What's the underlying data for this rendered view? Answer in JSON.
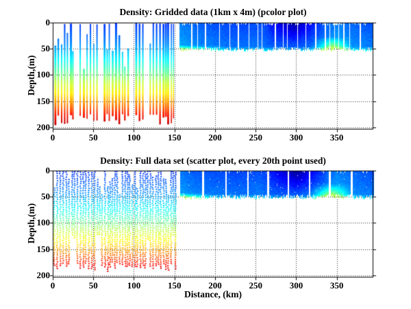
{
  "figure": {
    "background": "#ffffff",
    "axis_color": "#000000",
    "grid_style": "dotted"
  },
  "chart_data": [
    {
      "type": "heatmap",
      "render": "pcolor",
      "title": "Density: Gridded data (1km x 4m) (pcolor plot)",
      "xlabel": "",
      "ylabel": "Depth,(m)",
      "xlim": [
        0,
        395
      ],
      "ylim": [
        0,
        204
      ],
      "y_axis_reversed": true,
      "xticks": [
        0,
        50,
        100,
        150,
        200,
        250,
        300,
        350
      ],
      "yticks": [
        0,
        50,
        100,
        150,
        200
      ],
      "grid": "on",
      "colormap": "jet",
      "depth_value_stops": [
        [
          0,
          0.17
        ],
        [
          40,
          0.26
        ],
        [
          70,
          0.37
        ],
        [
          95,
          0.47
        ],
        [
          115,
          0.57
        ],
        [
          135,
          0.64
        ],
        [
          155,
          0.74
        ],
        [
          175,
          0.85
        ],
        [
          192,
          0.93
        ]
      ],
      "sections": [
        {
          "name": "survey-profiles",
          "style": "stripes",
          "x_range": [
            2,
            150
          ],
          "depth_range": [
            0,
            196
          ]
        },
        {
          "name": "shallow-transect",
          "style": "block",
          "x_range": [
            156,
            395
          ],
          "depth_range": [
            0,
            52
          ],
          "base_values": [
            [
              156,
              0.25
            ],
            [
              175,
              0.22
            ],
            [
              200,
              0.2
            ],
            [
              230,
              0.19
            ],
            [
              255,
              0.2
            ],
            [
              270,
              0.17
            ],
            [
              300,
              0.16
            ],
            [
              330,
              0.2
            ],
            [
              350,
              0.25
            ],
            [
              370,
              0.22
            ],
            [
              395,
              0.2
            ]
          ],
          "dark_patch": {
            "x_range": [
              262,
              335
            ],
            "peak_x": 297,
            "max_drop": 0.13
          },
          "cyan_wedge": {
            "x_range": [
              316,
              366
            ],
            "peak_x": 344,
            "depth_from": 26,
            "max_rise": 0.32
          },
          "bottom_fringe": {
            "x_max": 215,
            "depth_from": 42,
            "rise": 0.18
          },
          "gap_style": "random"
        }
      ]
    },
    {
      "type": "scatter",
      "render": "scatter",
      "title": "Density: Full data set (scatter plot, every 20th point used)",
      "xlabel": "Distance, (km)",
      "ylabel": "Depth,(m)",
      "xlim": [
        0,
        395
      ],
      "ylim": [
        0,
        204
      ],
      "y_axis_reversed": true,
      "xticks": [
        0,
        50,
        100,
        150,
        200,
        250,
        300,
        350
      ],
      "yticks": [
        0,
        50,
        100,
        150,
        200
      ],
      "grid": "on",
      "colormap": "jet",
      "depth_value_stops": [
        [
          0,
          0.17
        ],
        [
          40,
          0.26
        ],
        [
          70,
          0.37
        ],
        [
          95,
          0.47
        ],
        [
          115,
          0.57
        ],
        [
          135,
          0.64
        ],
        [
          155,
          0.74
        ],
        [
          175,
          0.85
        ],
        [
          192,
          0.93
        ]
      ],
      "sections": [
        {
          "name": "survey-profiles",
          "style": "dots",
          "x_range": [
            1,
            152
          ],
          "depth_range": [
            0,
            192
          ]
        },
        {
          "name": "shallow-transect",
          "style": "block",
          "x_range": [
            157,
            395
          ],
          "depth_range": [
            0,
            51
          ],
          "base_values": [
            [
              157,
              0.24
            ],
            [
              175,
              0.21
            ],
            [
              200,
              0.2
            ],
            [
              230,
              0.19
            ],
            [
              255,
              0.2
            ],
            [
              270,
              0.17
            ],
            [
              300,
              0.16
            ],
            [
              330,
              0.2
            ],
            [
              350,
              0.25
            ],
            [
              370,
              0.22
            ],
            [
              395,
              0.2
            ]
          ],
          "dark_patch": {
            "x_range": [
              262,
              338
            ],
            "peak_x": 300,
            "max_drop": 0.14
          },
          "cyan_wedge": {
            "x_range": [
              315,
              368
            ],
            "peak_x": 342,
            "depth_from": 24,
            "max_rise": 0.34
          },
          "bottom_fringe": {
            "x_max": 200,
            "depth_from": 42,
            "rise": 0.2
          },
          "gap_style": "list",
          "gaps_km": [
            185,
            213,
            240,
            265,
            290,
            316,
            341,
            368
          ]
        }
      ]
    }
  ]
}
